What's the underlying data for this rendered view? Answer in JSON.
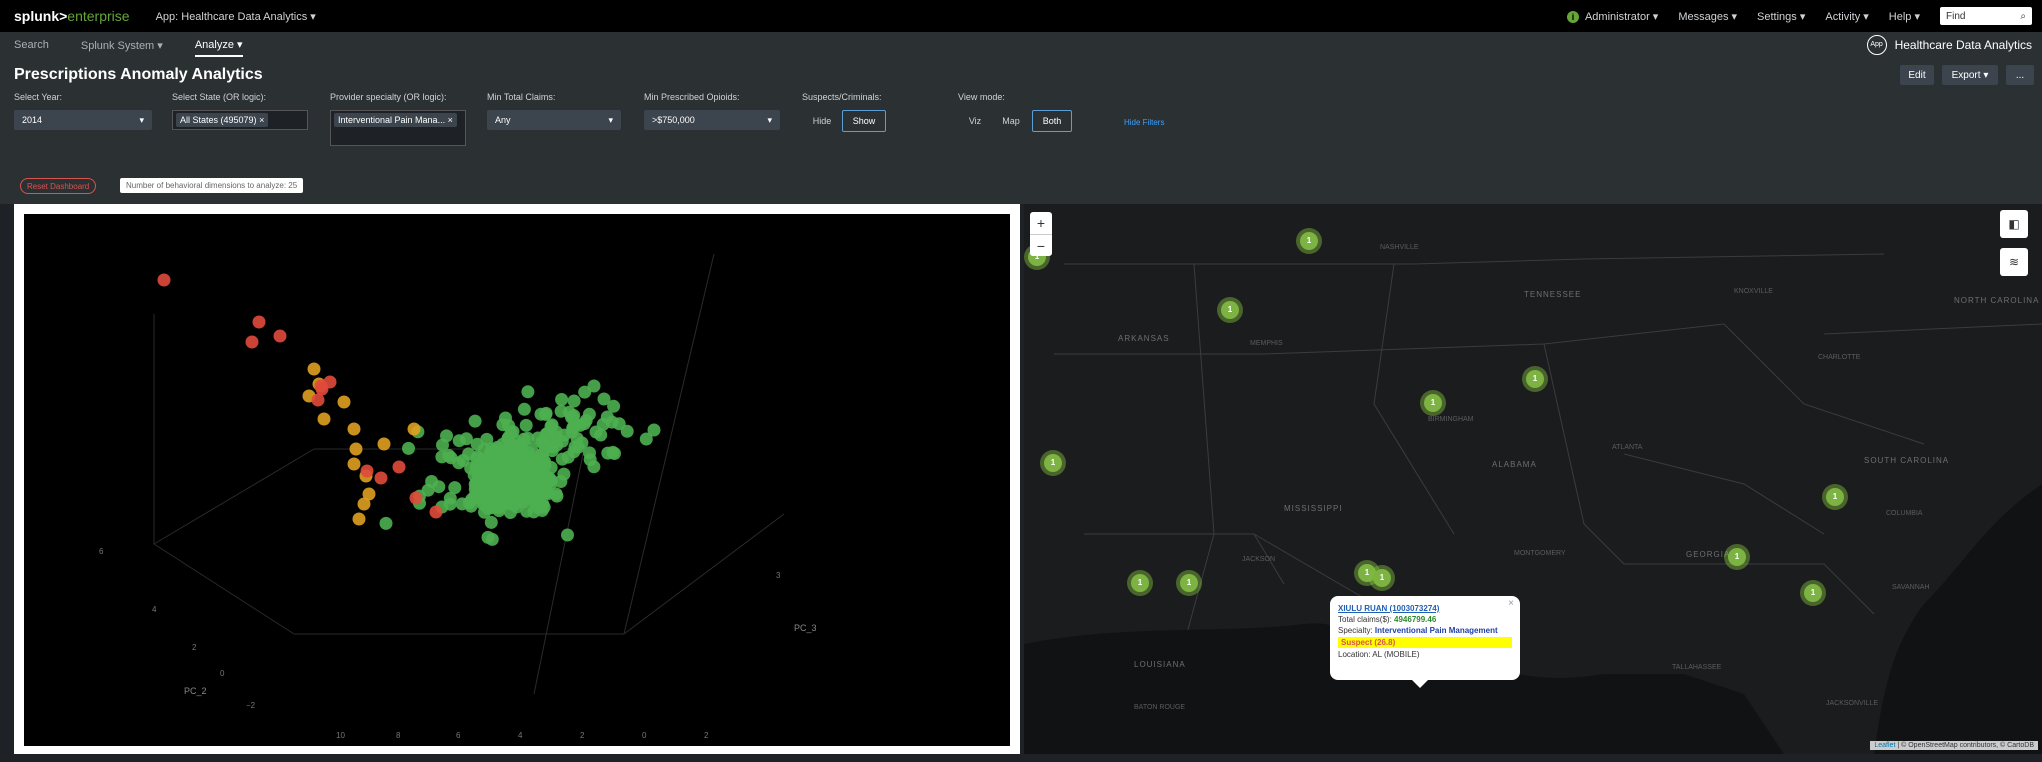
{
  "topbar": {
    "logo_main": "splunk>",
    "logo_sub": "enterprise",
    "app_label": "App: Healthcare Data Analytics ▾",
    "status_icon": "i",
    "menu": [
      "Administrator ▾",
      "Messages ▾",
      "Settings ▾",
      "Activity ▾",
      "Help ▾"
    ],
    "find_placeholder": "Find"
  },
  "nav": {
    "items": [
      "Search",
      "Splunk System ▾",
      "Analyze ▾"
    ],
    "active": 2,
    "app_icon_text": "App",
    "app_name": "Healthcare Data Analytics"
  },
  "dashboard": {
    "title": "Prescriptions Anomaly Analytics",
    "buttons": {
      "edit": "Edit",
      "export": "Export ▾",
      "more": "..."
    },
    "filters": {
      "year": {
        "label": "Select Year:",
        "value": "2014"
      },
      "state": {
        "label": "Select State (OR logic):",
        "token": "All States (495079)"
      },
      "specialty": {
        "label": "Provider specialty (OR logic):",
        "token": "Interventional Pain Mana..."
      },
      "claims": {
        "label": "Min Total Claims:",
        "value": "Any"
      },
      "opioids": {
        "label": "Min Prescribed Opioids:",
        "value": ">$750,000"
      },
      "suspects": {
        "label": "Suspects/Criminals:",
        "options": [
          "Hide",
          "Show"
        ],
        "selected": "Show"
      },
      "viewmode": {
        "label": "View mode:",
        "options": [
          "Viz",
          "Map",
          "Both"
        ],
        "selected": "Both"
      }
    },
    "hide_filters": "Hide Filters",
    "reset_label": "Reset Dashboard",
    "dims_label": "Number of behavioral dimensions to analyze: 25"
  },
  "plot": {
    "axis_pc2": "PC_2",
    "axis_pc3": "PC_3",
    "ticks": [
      "6",
      "4",
      "2",
      "0",
      "−2",
      "10",
      "8",
      "6",
      "4",
      "2",
      "0",
      "2",
      "3"
    ],
    "colors": {
      "normal": "#4caf50",
      "warning": "#e0a020",
      "anomaly": "#e04a3a"
    }
  },
  "map": {
    "zoom_in": "+",
    "zoom_out": "−",
    "labels": [
      "TENNESSEE",
      "ARKANSAS",
      "NORTH CAROLINA",
      "SOUTH CAROLINA",
      "MISSISSIPPI",
      "ALABAMA",
      "GEORGIA",
      "LOUISIANA"
    ],
    "cities": [
      "NASHVILLE",
      "KNOXVILLE",
      "MEMPHIS",
      "ATLANTA",
      "COLUMBIA",
      "CHARLOTTE",
      "JACKSON",
      "MONTGOMERY",
      "BIRMINGHAM",
      "TALLAHASSEE",
      "SAVANNAH",
      "JACKSONVILLE",
      "BATON ROUGE"
    ],
    "clusters": [
      {
        "count": "1"
      },
      {
        "count": "1"
      },
      {
        "count": "1"
      },
      {
        "count": "1"
      },
      {
        "count": "1"
      },
      {
        "count": "1"
      },
      {
        "count": "1"
      },
      {
        "count": "1"
      },
      {
        "count": "1"
      },
      {
        "count": "1"
      },
      {
        "count": "1"
      },
      {
        "count": "1"
      },
      {
        "count": "1"
      }
    ],
    "popup": {
      "name": "XIULU RUAN (1003073274)",
      "claims_label": "Total claims($):",
      "claims_value": "4946799.46",
      "specialty_label": "Specialty:",
      "specialty_value": "Interventional Pain Management",
      "suspect": "Suspect (26.8)",
      "location": "Location: AL (MOBILE)"
    },
    "attribution_leaflet": "Leaflet",
    "attribution_osm": "© OpenStreetMap contributors, © CartoDB"
  }
}
